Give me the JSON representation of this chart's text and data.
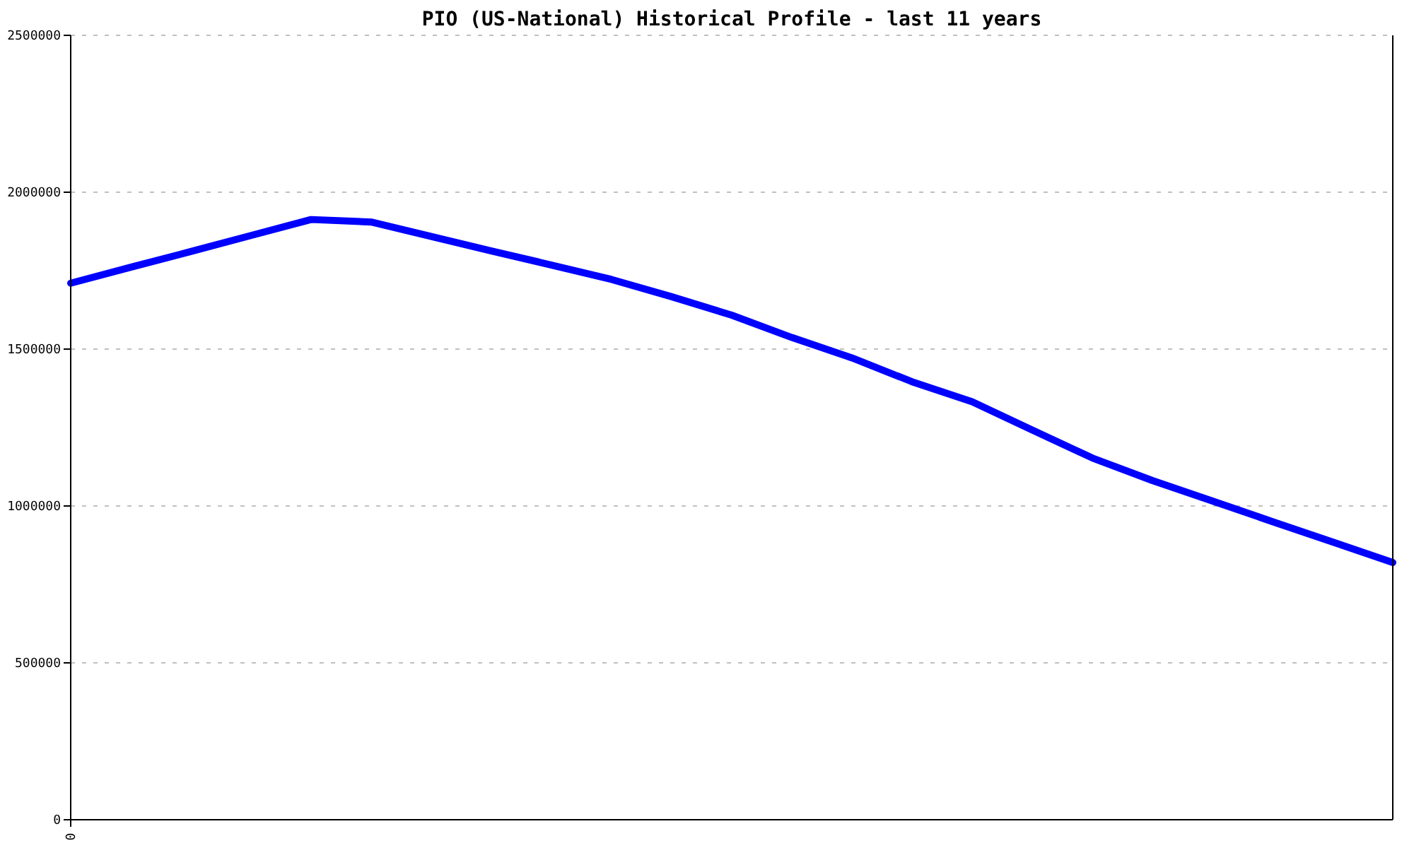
{
  "chart_data": {
    "type": "line",
    "title": "PIO (US-National) Historical Profile - last 11 years",
    "categories": [
      null,
      null,
      null,
      null,
      null,
      null,
      null,
      null,
      null,
      null,
      null,
      null,
      null,
      null,
      null,
      null,
      null,
      null,
      null,
      null,
      null,
      null,
      null
    ],
    "series": [
      {
        "color": "#0000ff",
        "values": [
          1710000,
          1761000,
          1811000,
          1862000,
          1913000,
          1905000,
          1859000,
          1813000,
          1768000,
          1722000,
          1667000,
          1608000,
          1537000,
          1472000,
          1396000,
          1332000,
          1242000,
          1153000,
          1081000,
          1016000,
          950000,
          885000,
          820000
        ]
      }
    ],
    "annotations": [
      "0"
    ],
    "ylim": [
      0,
      2500000
    ],
    "yticks": [
      0,
      500000,
      1000000,
      1500000,
      2000000,
      2500000
    ],
    "grid": "y",
    "legend": false,
    "marker": "none",
    "line_style": "solid"
  }
}
